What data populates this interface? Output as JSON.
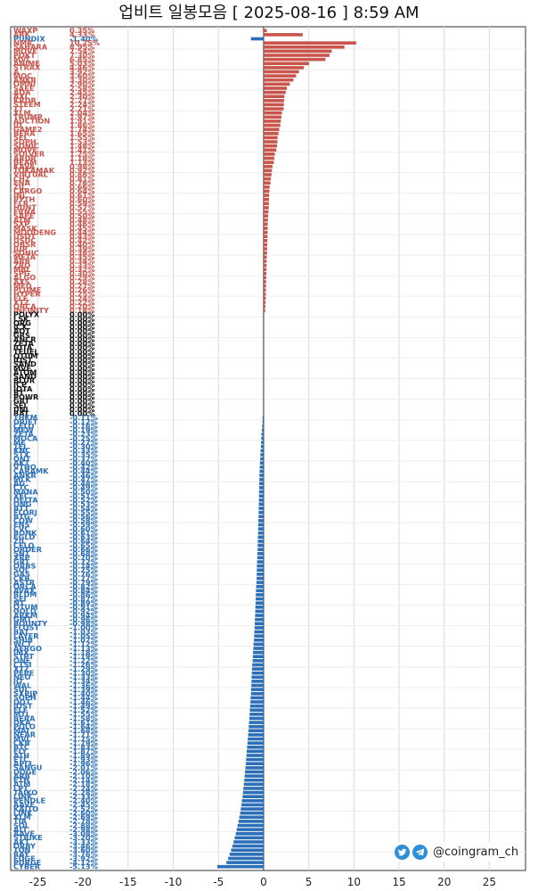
{
  "header": {
    "title": "업비트 일봉모음 [ 2025-08-16 ] 8:59 AM"
  },
  "footer": {
    "handle": "@coingram_ch",
    "icons": [
      "twitter-icon",
      "telegram-icon"
    ]
  },
  "colors": {
    "up": "#c8544b",
    "down": "#2a6fb8",
    "flat": "#111111",
    "grid": "#d9d9d9"
  },
  "chart_data": {
    "type": "bar",
    "title": "업비트 일봉모음 [ 2025-08-16 ] 8:59 AM",
    "xlim": [
      -28,
      29
    ],
    "xticks": [
      -25,
      -20,
      -15,
      -10,
      -5,
      0,
      5,
      10,
      15,
      20,
      25
    ],
    "grid": true,
    "orientation": "horizontal",
    "coins": [
      {
        "name": "WAXP",
        "change": 0.35
      },
      {
        "name": "ARK",
        "change": 4.33
      },
      {
        "name": "PUNDIX",
        "change": -1.4
      },
      {
        "name": "NMR",
        "change": 10.25
      },
      {
        "name": "SAHARA",
        "change": 8.95
      },
      {
        "name": "MOVE",
        "change": 7.54
      },
      {
        "name": "POKT",
        "change": 7.3
      },
      {
        "name": "MVL",
        "change": 6.85
      },
      {
        "name": "ANIME",
        "change": 5.03
      },
      {
        "name": "STRAX",
        "change": 4.46
      },
      {
        "name": "A",
        "change": 3.92
      },
      {
        "name": "MOC",
        "change": 3.6
      },
      {
        "name": "ANKR",
        "change": 3.3
      },
      {
        "name": "OMNI",
        "change": 2.9
      },
      {
        "name": "SAFE",
        "change": 2.58
      },
      {
        "name": "ADA",
        "change": 2.45
      },
      {
        "name": "AXL",
        "change": 2.3
      },
      {
        "name": "KRDR",
        "change": 2.27
      },
      {
        "name": "STEEM",
        "change": 2.24
      },
      {
        "name": "TT",
        "change": 2.21
      },
      {
        "name": "XLM",
        "change": 2.04
      },
      {
        "name": "TRUMP",
        "change": 1.97
      },
      {
        "name": "AUCTION",
        "change": 1.91
      },
      {
        "name": "ID",
        "change": 1.86
      },
      {
        "name": "GAME2",
        "change": 1.74
      },
      {
        "name": "BERA",
        "change": 1.65
      },
      {
        "name": "SEI",
        "change": 1.55
      },
      {
        "name": "SOPH",
        "change": 1.53
      },
      {
        "name": "SONIC",
        "change": 1.48
      },
      {
        "name": "MOVE",
        "change": 1.41
      },
      {
        "name": "SOLVER",
        "change": 1.25
      },
      {
        "name": "ARDR",
        "change": 1.18
      },
      {
        "name": "BEAM",
        "change": 1.13
      },
      {
        "name": "KAVA",
        "change": 0.98
      },
      {
        "name": "TOKAMAK",
        "change": 0.92
      },
      {
        "name": "VIRTUAL",
        "change": 0.88
      },
      {
        "name": "CHZ",
        "change": 0.81
      },
      {
        "name": "ENA",
        "change": 0.76
      },
      {
        "name": "ZIL",
        "change": 0.66
      },
      {
        "name": "CARGO",
        "change": 0.64
      },
      {
        "name": "INJ",
        "change": 0.61
      },
      {
        "name": "PYTH",
        "change": 0.6
      },
      {
        "name": "FLR",
        "change": 0.59
      },
      {
        "name": "HUNT",
        "change": 0.57
      },
      {
        "name": "FRNA",
        "change": 0.55
      },
      {
        "name": "SAFE",
        "change": 0.5
      },
      {
        "name": "ATM",
        "change": 0.48
      },
      {
        "name": "SXP",
        "change": 0.46
      },
      {
        "name": "MASK",
        "change": 0.45
      },
      {
        "name": "MOODENG",
        "change": 0.44
      },
      {
        "name": "USDT",
        "change": 0.43
      },
      {
        "name": "USDC",
        "change": 0.42
      },
      {
        "name": "OBSR",
        "change": 0.4
      },
      {
        "name": "JUP",
        "change": 0.39
      },
      {
        "name": "SONIC",
        "change": 0.38
      },
      {
        "name": "META",
        "change": 0.35
      },
      {
        "name": "ARB",
        "change": 0.34
      },
      {
        "name": "ZRO",
        "change": 0.33
      },
      {
        "name": "MBL",
        "change": 0.32
      },
      {
        "name": "SPG",
        "change": 0.3
      },
      {
        "name": "ALGO",
        "change": 0.29
      },
      {
        "name": "AXS",
        "change": 0.28
      },
      {
        "name": "MED",
        "change": 0.27
      },
      {
        "name": "PLUME",
        "change": 0.26
      },
      {
        "name": "HYPER",
        "change": 0.25
      },
      {
        "name": "ELF",
        "change": 0.24
      },
      {
        "name": "XTZ",
        "change": 0.22
      },
      {
        "name": "ORCA",
        "change": 0.2
      },
      {
        "name": "INFINITY",
        "change": 0.18
      },
      {
        "name": "POLYX",
        "change": 0.0
      },
      {
        "name": "LSK",
        "change": 0.0
      },
      {
        "name": "ORG",
        "change": 0.0
      },
      {
        "name": "ICX",
        "change": 0.0
      },
      {
        "name": "AQT",
        "change": 0.0
      },
      {
        "name": "GRS",
        "change": 0.0
      },
      {
        "name": "ANCR",
        "change": 0.0
      },
      {
        "name": "ZETA",
        "change": 0.0
      },
      {
        "name": "IOTA",
        "change": 0.0
      },
      {
        "name": "TFUEL",
        "change": 0.0
      },
      {
        "name": "QTUM",
        "change": 0.0
      },
      {
        "name": "IOST",
        "change": 0.0
      },
      {
        "name": "SAND",
        "change": 0.0
      },
      {
        "name": "MVE",
        "change": 0.0
      },
      {
        "name": "ATOM",
        "change": 0.0
      },
      {
        "name": "SAND",
        "change": 0.0
      },
      {
        "name": "BLUR",
        "change": 0.0
      },
      {
        "name": "ICP",
        "change": 0.0
      },
      {
        "name": "IOTA",
        "change": 0.0
      },
      {
        "name": "BT",
        "change": 0.0
      },
      {
        "name": "POWR",
        "change": 0.0
      },
      {
        "name": "GRT",
        "change": 0.0
      },
      {
        "name": "SEI",
        "change": 0.0
      },
      {
        "name": "UNI",
        "change": 0.0
      },
      {
        "name": "BAT",
        "change": 0.0
      },
      {
        "name": "THKM",
        "change": -0.11
      },
      {
        "name": "DRIFT",
        "change": -0.12
      },
      {
        "name": "CELO",
        "change": -0.16
      },
      {
        "name": "MEW",
        "change": -0.19
      },
      {
        "name": "ZETA",
        "change": -0.23
      },
      {
        "name": "MOCA",
        "change": -0.25
      },
      {
        "name": "ME",
        "change": -0.27
      },
      {
        "name": "TEL",
        "change": -0.3
      },
      {
        "name": "KNC",
        "change": -0.33
      },
      {
        "name": "STX",
        "change": -0.35
      },
      {
        "name": "ONT",
        "change": -0.37
      },
      {
        "name": "AKT",
        "change": -0.4
      },
      {
        "name": "VTHO",
        "change": -0.42
      },
      {
        "name": "CARAMK",
        "change": -0.44
      },
      {
        "name": "ANKR",
        "change": -0.46
      },
      {
        "name": "MLK",
        "change": -0.47
      },
      {
        "name": "AG",
        "change": -0.48
      },
      {
        "name": "CTC",
        "change": -0.49
      },
      {
        "name": "MANA",
        "change": -0.5
      },
      {
        "name": "XEC",
        "change": -0.51
      },
      {
        "name": "DELTA",
        "change": -0.52
      },
      {
        "name": "ONG",
        "change": -0.53
      },
      {
        "name": "BTT",
        "change": -0.54
      },
      {
        "name": "FLORJ",
        "change": -0.55
      },
      {
        "name": "BTG",
        "change": -0.56
      },
      {
        "name": "COW",
        "change": -0.58
      },
      {
        "name": "ENS",
        "change": -0.59
      },
      {
        "name": "CVC",
        "change": -0.6
      },
      {
        "name": "BONK",
        "change": -0.61
      },
      {
        "name": "EGLD",
        "change": -0.63
      },
      {
        "name": "ZIL",
        "change": -0.64
      },
      {
        "name": "CELO",
        "change": -0.65
      },
      {
        "name": "ORDER",
        "change": -0.66
      },
      {
        "name": "SNT",
        "change": -0.68
      },
      {
        "name": "XRP",
        "change": -0.7
      },
      {
        "name": "GRT",
        "change": -0.72
      },
      {
        "name": "ORBS",
        "change": -0.74
      },
      {
        "name": "SOL",
        "change": -0.75
      },
      {
        "name": "GAS",
        "change": -0.76
      },
      {
        "name": "CKB",
        "change": -0.77
      },
      {
        "name": "ASTR",
        "change": -0.79
      },
      {
        "name": "ORCA",
        "change": -0.82
      },
      {
        "name": "AVAX",
        "change": -0.84
      },
      {
        "name": "BLDM",
        "change": -0.86
      },
      {
        "name": "SEI",
        "change": -0.87
      },
      {
        "name": "NT",
        "change": -0.89
      },
      {
        "name": "QTUM",
        "change": -0.91
      },
      {
        "name": "GOLD",
        "change": -0.92
      },
      {
        "name": "ARKM",
        "change": -0.94
      },
      {
        "name": "GMT",
        "change": -0.96
      },
      {
        "name": "BOUNTY",
        "change": -0.98
      },
      {
        "name": "FLOST",
        "change": -1.0
      },
      {
        "name": "BAT",
        "change": -1.03
      },
      {
        "name": "LAYER",
        "change": -1.05
      },
      {
        "name": "SHIB",
        "change": -1.07
      },
      {
        "name": "WCT",
        "change": -1.12
      },
      {
        "name": "AERGO",
        "change": -1.13
      },
      {
        "name": "IMX",
        "change": -1.18
      },
      {
        "name": "STPT",
        "change": -1.19
      },
      {
        "name": "ONE",
        "change": -1.22
      },
      {
        "name": "CTSI",
        "change": -1.26
      },
      {
        "name": "XTZ",
        "change": -1.29
      },
      {
        "name": "PEPE",
        "change": -1.3
      },
      {
        "name": "NEO",
        "change": -1.33
      },
      {
        "name": "IQ",
        "change": -1.34
      },
      {
        "name": "WAL",
        "change": -1.36
      },
      {
        "name": "SUI",
        "change": -1.39
      },
      {
        "name": "SXPJP",
        "change": -1.4
      },
      {
        "name": "SOPH",
        "change": -1.44
      },
      {
        "name": "DOT",
        "change": -1.46
      },
      {
        "name": "IOST",
        "change": -1.49
      },
      {
        "name": "ELF",
        "change": -1.52
      },
      {
        "name": "MTL",
        "change": -1.55
      },
      {
        "name": "BERA",
        "change": -1.58
      },
      {
        "name": "DKA",
        "change": -1.61
      },
      {
        "name": "POLO",
        "change": -1.64
      },
      {
        "name": "MAI",
        "change": -1.68
      },
      {
        "name": "NEAR",
        "change": -1.71
      },
      {
        "name": "MVL",
        "change": -1.75
      },
      {
        "name": "CKB",
        "change": -1.79
      },
      {
        "name": "BTC",
        "change": -1.83
      },
      {
        "name": "FLY",
        "change": -1.87
      },
      {
        "name": "ATH",
        "change": -1.89
      },
      {
        "name": "ETC",
        "change": -1.93
      },
      {
        "name": "API3",
        "change": -1.96
      },
      {
        "name": "SANGU",
        "change": -2.01
      },
      {
        "name": "DOGE",
        "change": -2.06
      },
      {
        "name": "ARB",
        "change": -2.1
      },
      {
        "name": "ETH",
        "change": -2.14
      },
      {
        "name": "ATM",
        "change": -2.18
      },
      {
        "name": "LPT",
        "change": -2.24
      },
      {
        "name": "TAIKO",
        "change": -2.28
      },
      {
        "name": "LINK",
        "change": -2.33
      },
      {
        "name": "PENDLE",
        "change": -2.4
      },
      {
        "name": "AAVE",
        "change": -2.45
      },
      {
        "name": "KAITO",
        "change": -2.52
      },
      {
        "name": "LINK",
        "change": -2.6
      },
      {
        "name": "XLM",
        "change": -2.69
      },
      {
        "name": "TIA",
        "change": -2.78
      },
      {
        "name": "SOL",
        "change": -2.88
      },
      {
        "name": "ALT",
        "change": -2.98
      },
      {
        "name": "AAVE",
        "change": -3.08
      },
      {
        "name": "STRIKE",
        "change": -3.2
      },
      {
        "name": "AKT",
        "change": -3.33
      },
      {
        "name": "ORBY",
        "change": -3.46
      },
      {
        "name": "TON",
        "change": -3.6
      },
      {
        "name": "RAY",
        "change": -3.76
      },
      {
        "name": "EDGE",
        "change": -3.92
      },
      {
        "name": "PURGE",
        "change": -4.12
      },
      {
        "name": "CYBER",
        "change": -5.13
      }
    ]
  }
}
